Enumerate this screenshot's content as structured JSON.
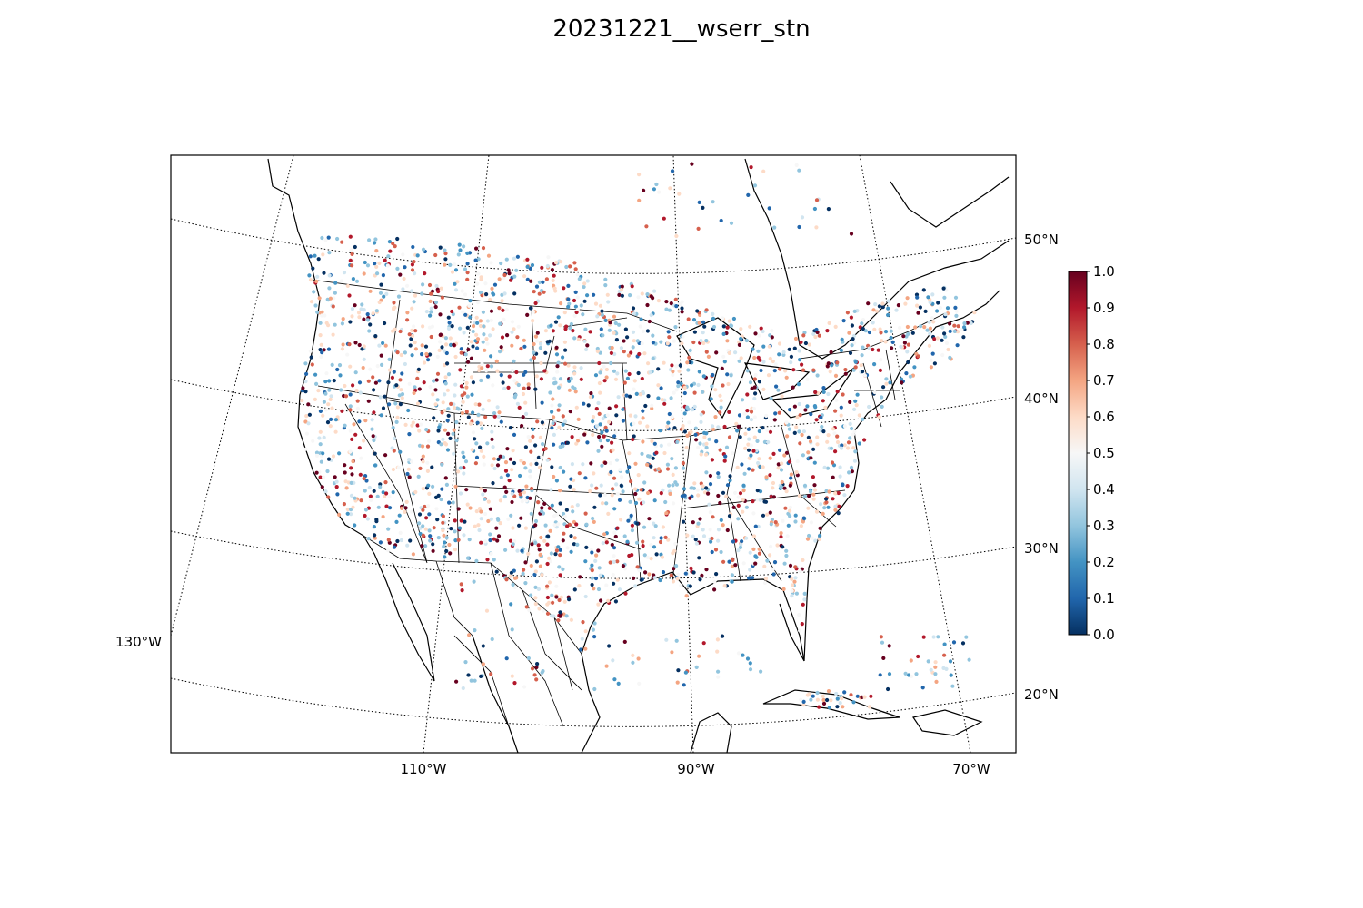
{
  "title": "20231221__wserr_stn",
  "map": {
    "projection": "lambert-conformal",
    "region": "Continental United States, southern Canada, Mexico, Caribbean",
    "lat_labels": [
      "50°N",
      "40°N",
      "30°N",
      "20°N"
    ],
    "lon_labels": [
      "110°W",
      "90°W",
      "70°W"
    ],
    "left_lon_label": "130°W",
    "graticule_style": "dotted",
    "stations": {
      "marker": "dot",
      "value_range": [
        0.0,
        1.0
      ],
      "density": "dense",
      "coastal_high_values": true
    }
  },
  "colorbar": {
    "colormap": "RdBu_r",
    "ticks": [
      "1.0",
      "0.9",
      "0.8",
      "0.7",
      "0.6",
      "0.5",
      "0.4",
      "0.3",
      "0.2",
      "0.1",
      "0.0"
    ],
    "colors": [
      "#053061",
      "#2166ac",
      "#4393c3",
      "#92c5de",
      "#d1e5f0",
      "#f7f7f7",
      "#fddbc7",
      "#f4a582",
      "#d6604d",
      "#b2182b",
      "#67001f"
    ]
  }
}
